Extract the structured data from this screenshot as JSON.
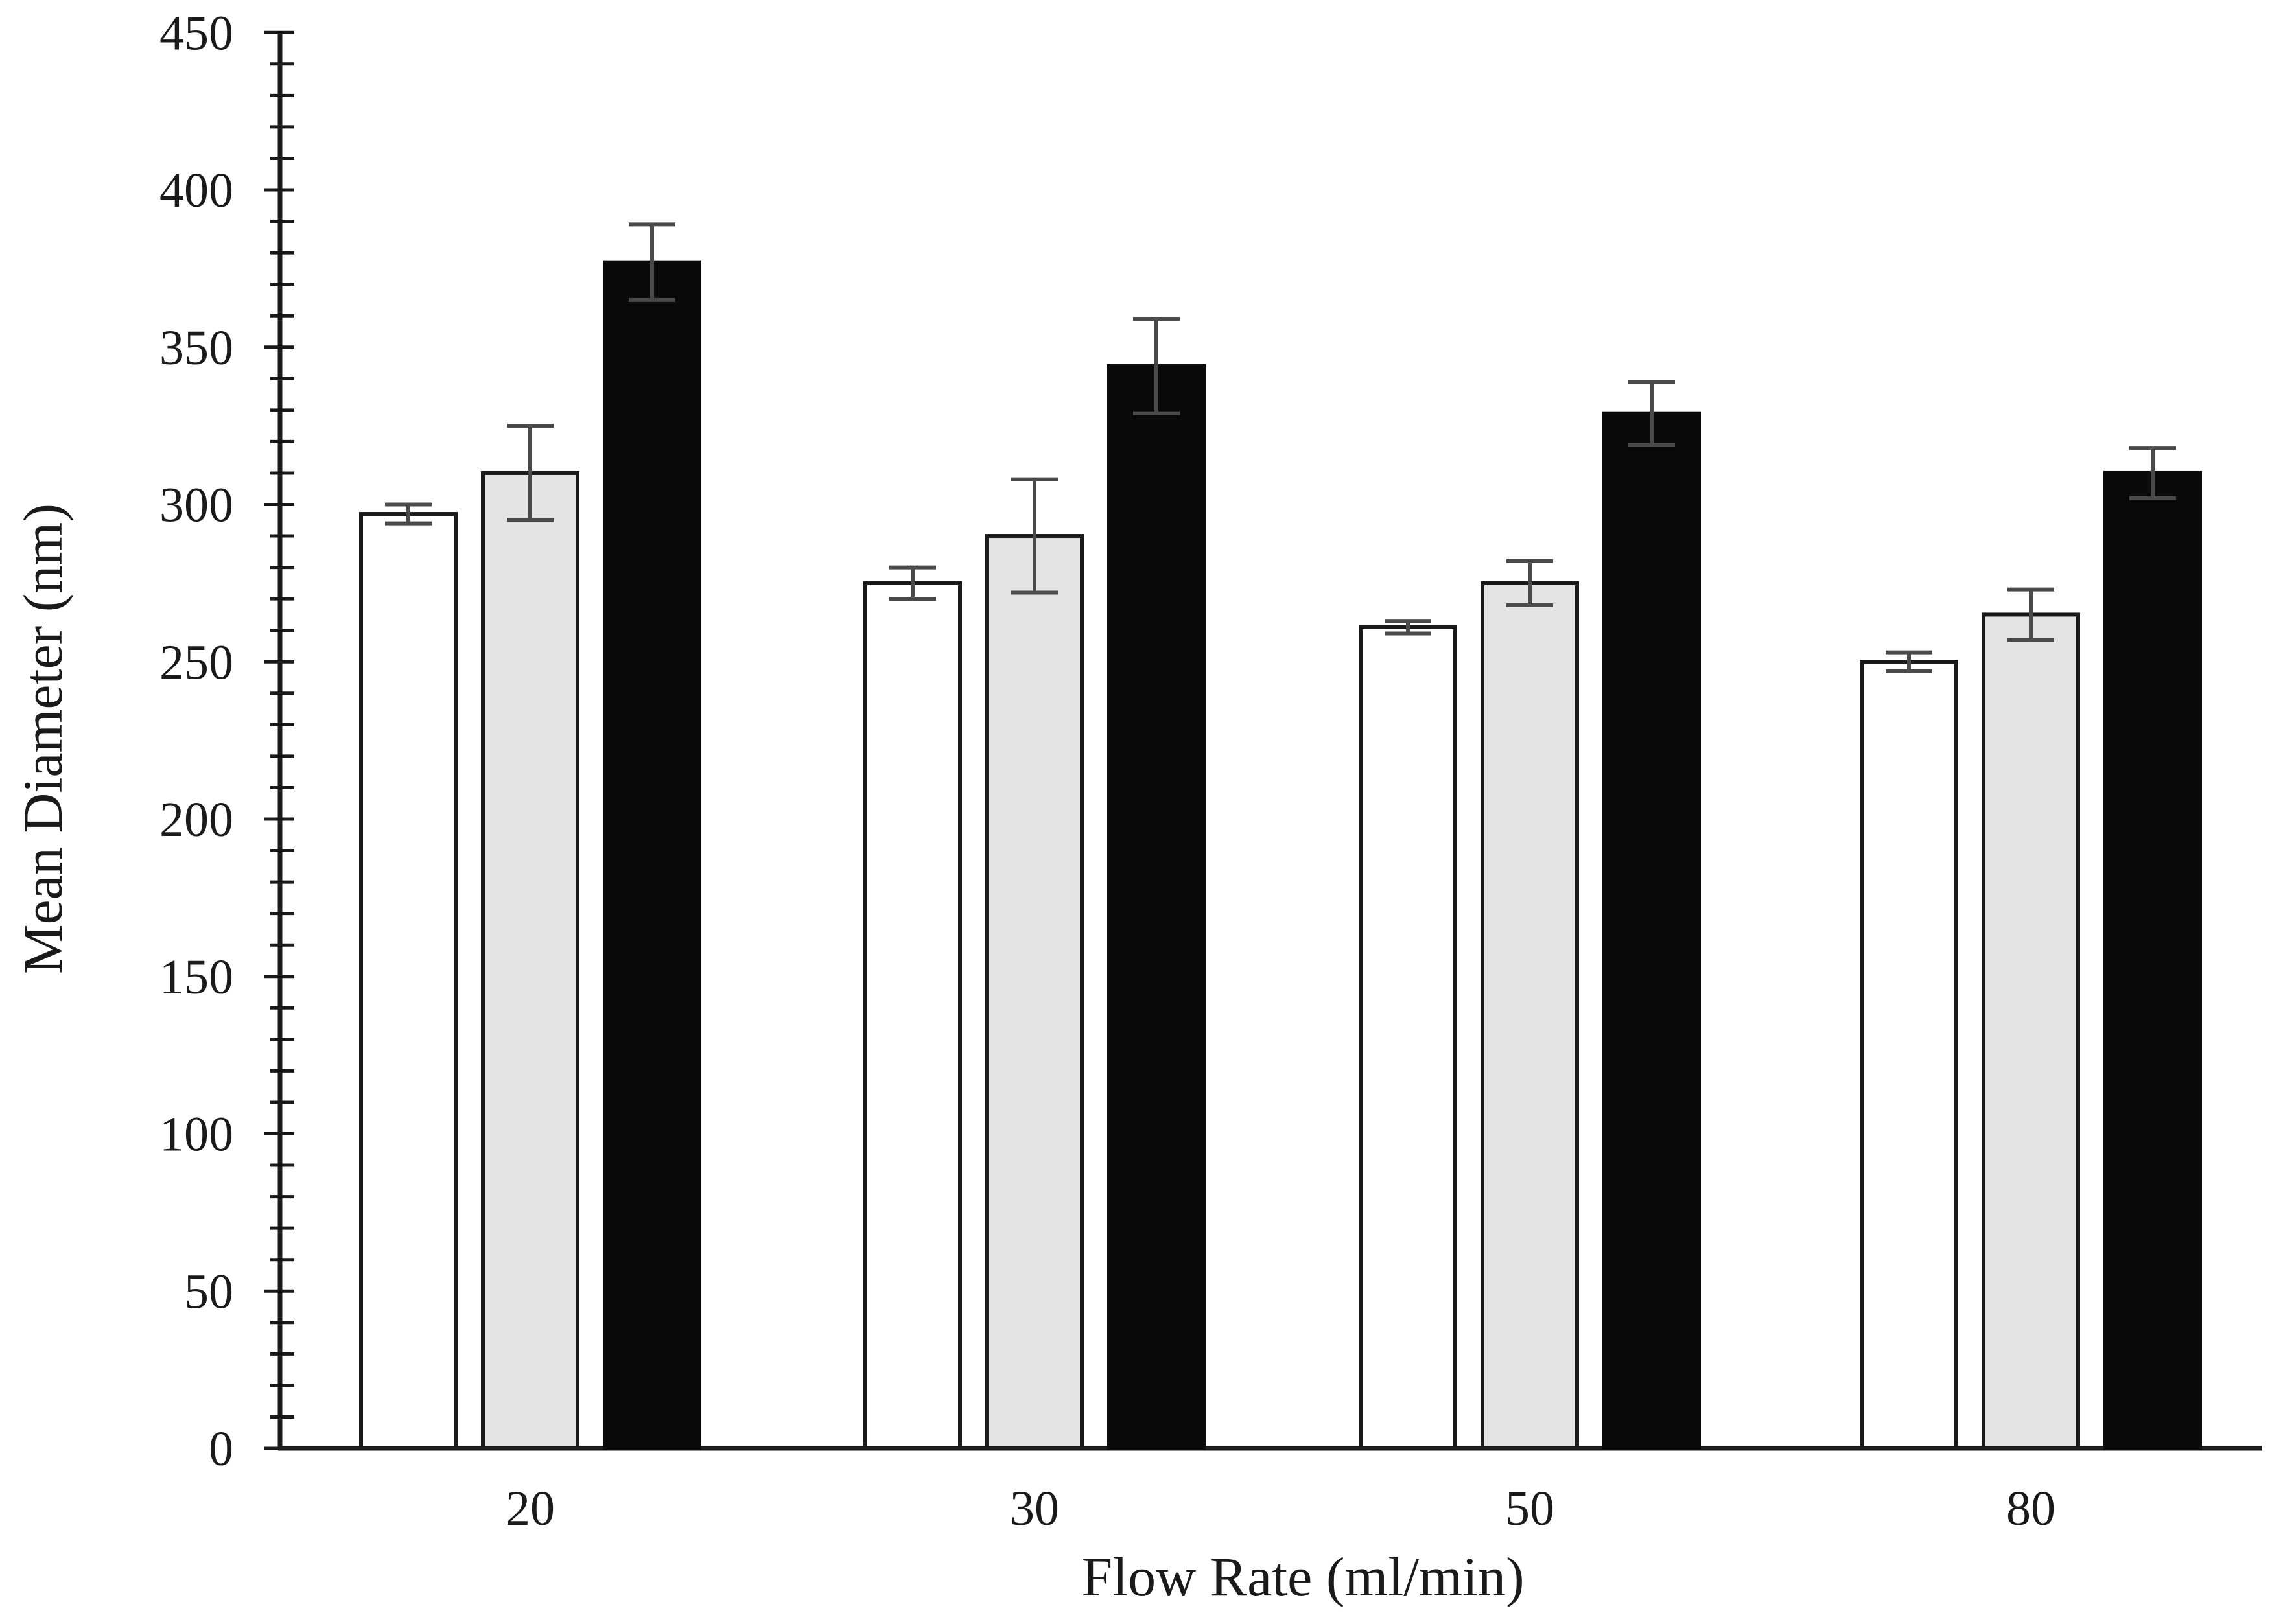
{
  "chart_data": {
    "type": "bar",
    "title": "",
    "xlabel": "Flow Rate (ml/min)",
    "ylabel": "Mean Diameter (nm)",
    "categories": [
      "20",
      "30",
      "50",
      "80"
    ],
    "series": [
      {
        "name": "white-bars",
        "fill": "#ffffff",
        "border": "#1a1a1a",
        "values": [
          297,
          275,
          261,
          250
        ],
        "errors": [
          3,
          5,
          2,
          3
        ]
      },
      {
        "name": "gray-bars",
        "fill": "#e4e4e4",
        "border": "#1a1a1a",
        "values": [
          310,
          290,
          275,
          265
        ],
        "errors": [
          15,
          18,
          7,
          8
        ]
      },
      {
        "name": "black-bars",
        "fill": "#0a0a0a",
        "border": "#0a0a0a",
        "values": [
          377,
          344,
          329,
          310
        ],
        "errors": [
          12,
          15,
          10,
          8
        ]
      }
    ],
    "ylim": [
      0,
      450
    ],
    "y_major_tick": 50,
    "y_minor_tick": 10,
    "grid": false,
    "legend": "none",
    "error_bar_color": "#4a4a4a",
    "axis_color": "#1a1a1a"
  }
}
